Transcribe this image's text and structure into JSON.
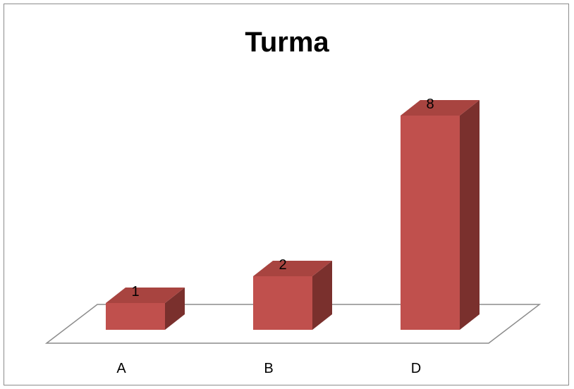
{
  "chart_data": {
    "type": "bar",
    "title": "Turma",
    "categories": [
      "A",
      "B",
      "D"
    ],
    "values": [
      1,
      2,
      8
    ],
    "ylim": [
      0,
      8
    ],
    "grid": false,
    "legend": "none",
    "xlabel": "",
    "ylabel": "",
    "colors": {
      "bar_front": "#c0504d",
      "bar_top": "#a84440",
      "bar_side": "#7a302d",
      "floor_stroke": "#8c8c8c"
    }
  }
}
